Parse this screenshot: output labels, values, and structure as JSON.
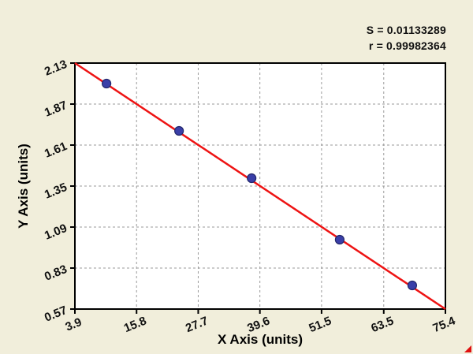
{
  "page": {
    "background": "#f1eedb"
  },
  "annotations": {
    "s_value": "S = 0.01133289",
    "r_value": "r = 0.99982364"
  },
  "chart_data": {
    "type": "scatter",
    "title": "",
    "xlabel": "X Axis (units)",
    "ylabel": "Y Axis (units)",
    "xlim": [
      3.9,
      75.4
    ],
    "ylim": [
      0.57,
      2.13
    ],
    "x_ticks": [
      "3.9",
      "15.8",
      "27.7",
      "39.6",
      "51.5",
      "63.5",
      "75.4"
    ],
    "y_ticks": [
      "0.57",
      "0.83",
      "1.09",
      "1.35",
      "1.61",
      "1.87",
      "2.13"
    ],
    "grid": "dashed",
    "legend": "none",
    "points": [
      {
        "x": 10.0,
        "y": 2.0
      },
      {
        "x": 24.0,
        "y": 1.7
      },
      {
        "x": 38.0,
        "y": 1.4
      },
      {
        "x": 55.0,
        "y": 1.01
      },
      {
        "x": 69.0,
        "y": 0.72
      }
    ],
    "fit_line": {
      "x1": 3.9,
      "y1": 2.13,
      "x2": 75.4,
      "y2": 0.57
    },
    "colors": {
      "line": "#ee1313",
      "point": "#3a3fa8",
      "point_edge": "#23276b",
      "grid": "#9a9a9a",
      "plot_bg": "#ffffff",
      "frame": "#000000",
      "tick_text": "#111111"
    }
  }
}
